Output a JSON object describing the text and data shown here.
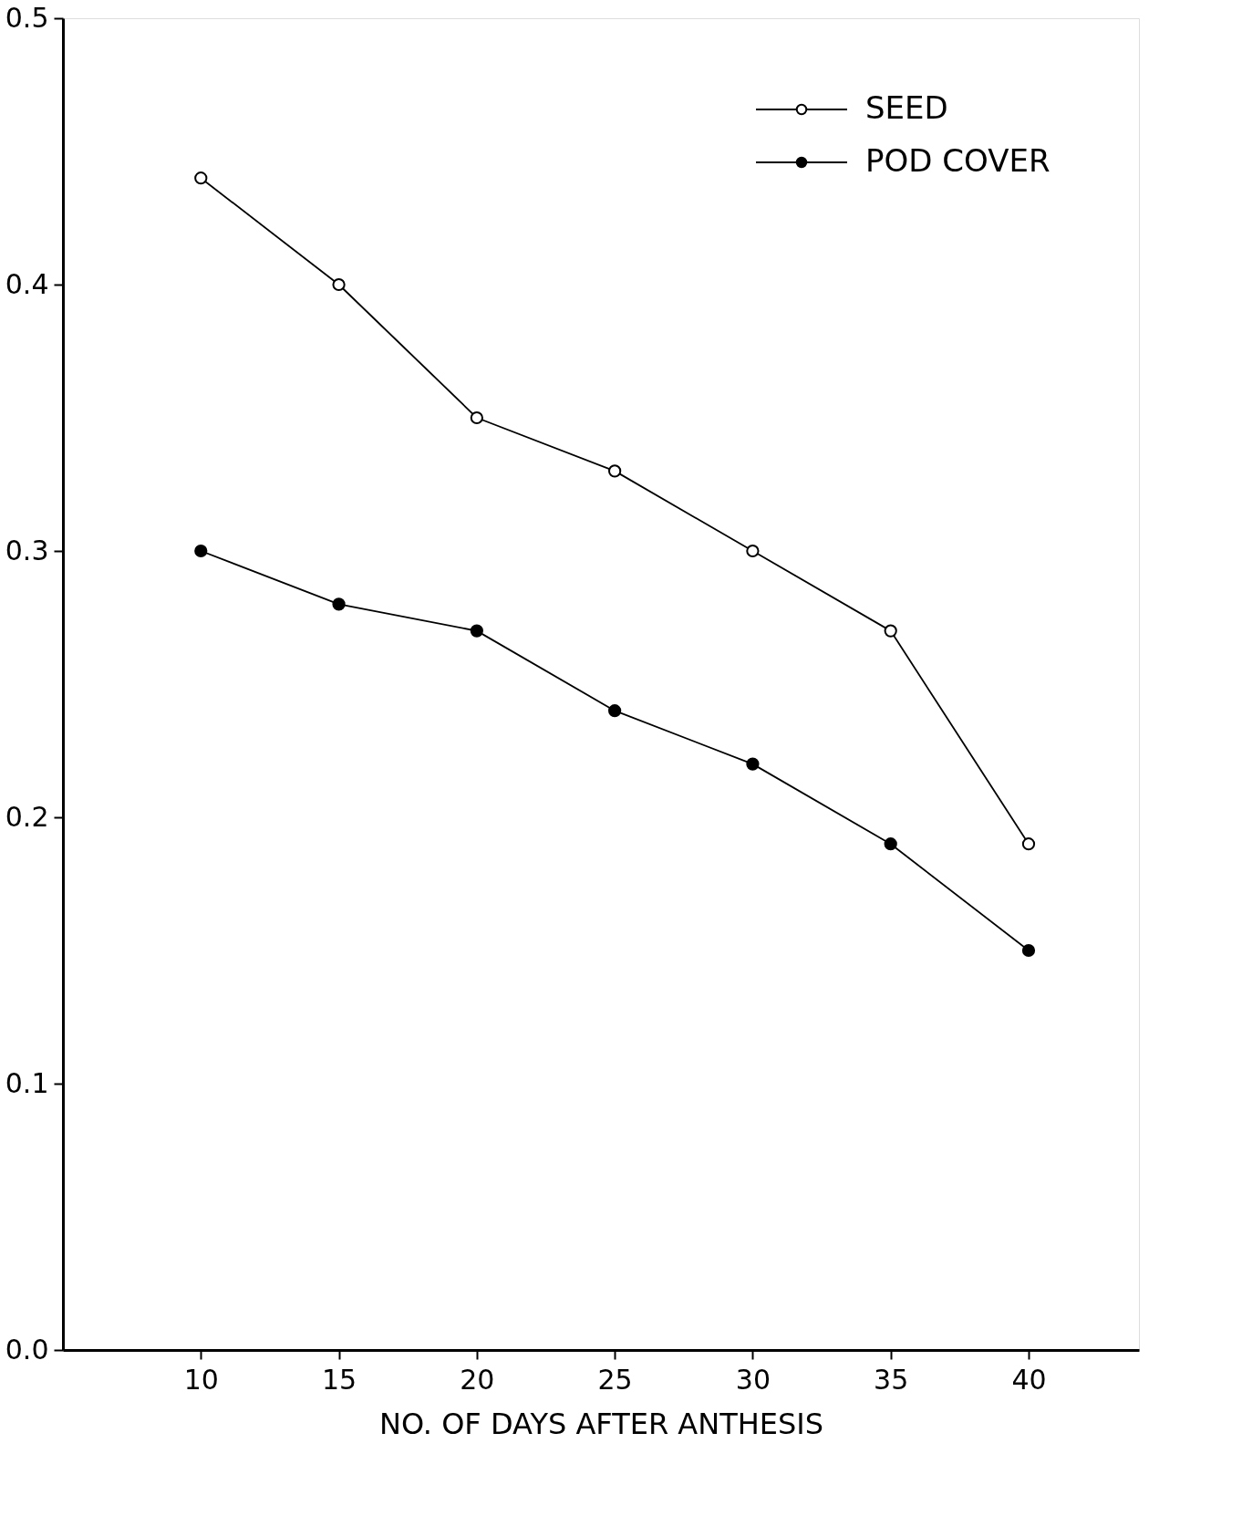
{
  "chart_data": {
    "type": "line",
    "xlabel": "NO. OF DAYS AFTER ANTHESIS",
    "x": [
      10,
      15,
      20,
      25,
      30,
      35,
      40
    ],
    "series": [
      {
        "name": "SEED",
        "color": "#000000",
        "values": [
          0.44,
          0.4,
          0.35,
          0.33,
          0.3,
          0.27,
          0.19
        ]
      },
      {
        "name": "POD COVER",
        "color": "#000000",
        "values": [
          0.3,
          0.28,
          0.27,
          0.24,
          0.22,
          0.19,
          0.15
        ]
      }
    ],
    "xlim": [
      5,
      44
    ],
    "xticks": [
      10,
      15,
      20,
      25,
      30,
      35,
      40
    ],
    "ylim": [
      0,
      0.5
    ],
    "yticks": [
      {
        "value": 0,
        "label": "0.0"
      },
      0.1,
      0.2,
      0.3,
      0.4,
      0.5
    ],
    "grid": false,
    "legend": "top right",
    "marker": "circle",
    "line_style": "solid"
  }
}
